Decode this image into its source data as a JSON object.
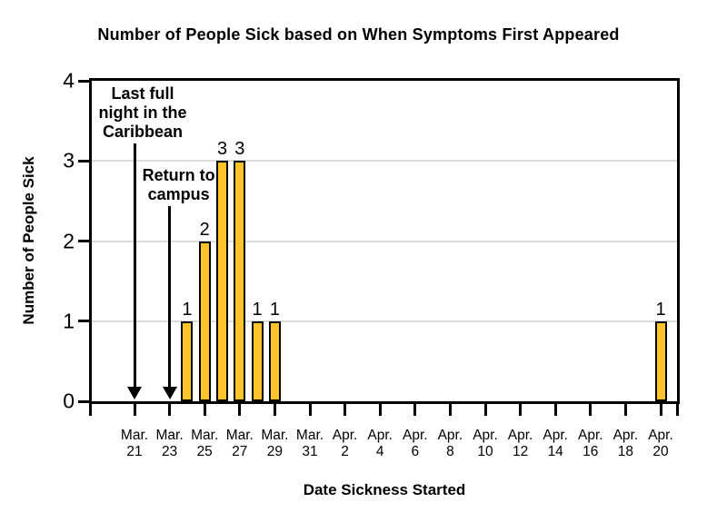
{
  "chart_data": {
    "type": "bar",
    "title": "Number of People Sick based on When Symptoms First Appeared",
    "xlabel": "Date Sickness Started",
    "ylabel": "Number of People Sick",
    "ylim": [
      0,
      4
    ],
    "yticks": [
      0,
      1,
      2,
      3,
      4
    ],
    "grid": "horizontal",
    "legend": "none",
    "x_range": [
      "Mar. 19",
      "Apr. 21"
    ],
    "x_tick_labels": [
      "Mar. 21",
      "Mar. 23",
      "Mar. 25",
      "Mar. 27",
      "Mar. 29",
      "Mar. 31",
      "Apr. 2",
      "Apr. 4",
      "Apr. 6",
      "Apr. 8",
      "Apr. 10",
      "Apr. 12",
      "Apr. 14",
      "Apr. 16",
      "Apr. 18",
      "Apr. 20"
    ],
    "bars": [
      {
        "date": "Mar. 24",
        "value": 1
      },
      {
        "date": "Mar. 25",
        "value": 2
      },
      {
        "date": "Mar. 26",
        "value": 3
      },
      {
        "date": "Mar. 27",
        "value": 3
      },
      {
        "date": "Mar. 28",
        "value": 1
      },
      {
        "date": "Mar. 29",
        "value": 1
      },
      {
        "date": "Apr. 20",
        "value": 1
      }
    ],
    "annotations": [
      {
        "lines": [
          "Last full",
          "night in the",
          "Caribbean"
        ],
        "date": "Mar. 21"
      },
      {
        "lines": [
          "Return to",
          "campus"
        ],
        "date": "Mar. 23"
      }
    ],
    "colors": {
      "bar_fill": "#FCC32B",
      "bar_border": "#000000",
      "gridline": "#DCDCDC",
      "axis": "#000000",
      "text": "#000000",
      "background": "#FFFFFF"
    }
  }
}
